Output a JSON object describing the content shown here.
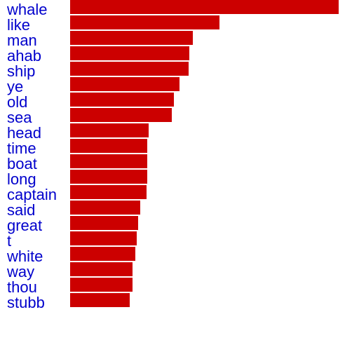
{
  "chart_data": {
    "type": "bar",
    "orientation": "horizontal",
    "title": "",
    "xlabel": "",
    "ylabel": "",
    "axes_visible": false,
    "grid": false,
    "legend": "none",
    "xlim": [
      0,
      1
    ],
    "categories": [
      "whale",
      "like",
      "man",
      "ahab",
      "ship",
      "ye",
      "old",
      "sea",
      "head",
      "time",
      "boat",
      "long",
      "captain",
      "said",
      "great",
      "t",
      "white",
      "way",
      "thou",
      "stubb"
    ],
    "values": [
      1.0,
      0.556,
      0.457,
      0.444,
      0.441,
      0.407,
      0.386,
      0.379,
      0.292,
      0.287,
      0.287,
      0.287,
      0.285,
      0.261,
      0.253,
      0.248,
      0.243,
      0.232,
      0.232,
      0.222
    ],
    "bar_color": "#cc0000",
    "label_color": "#0000cc"
  }
}
